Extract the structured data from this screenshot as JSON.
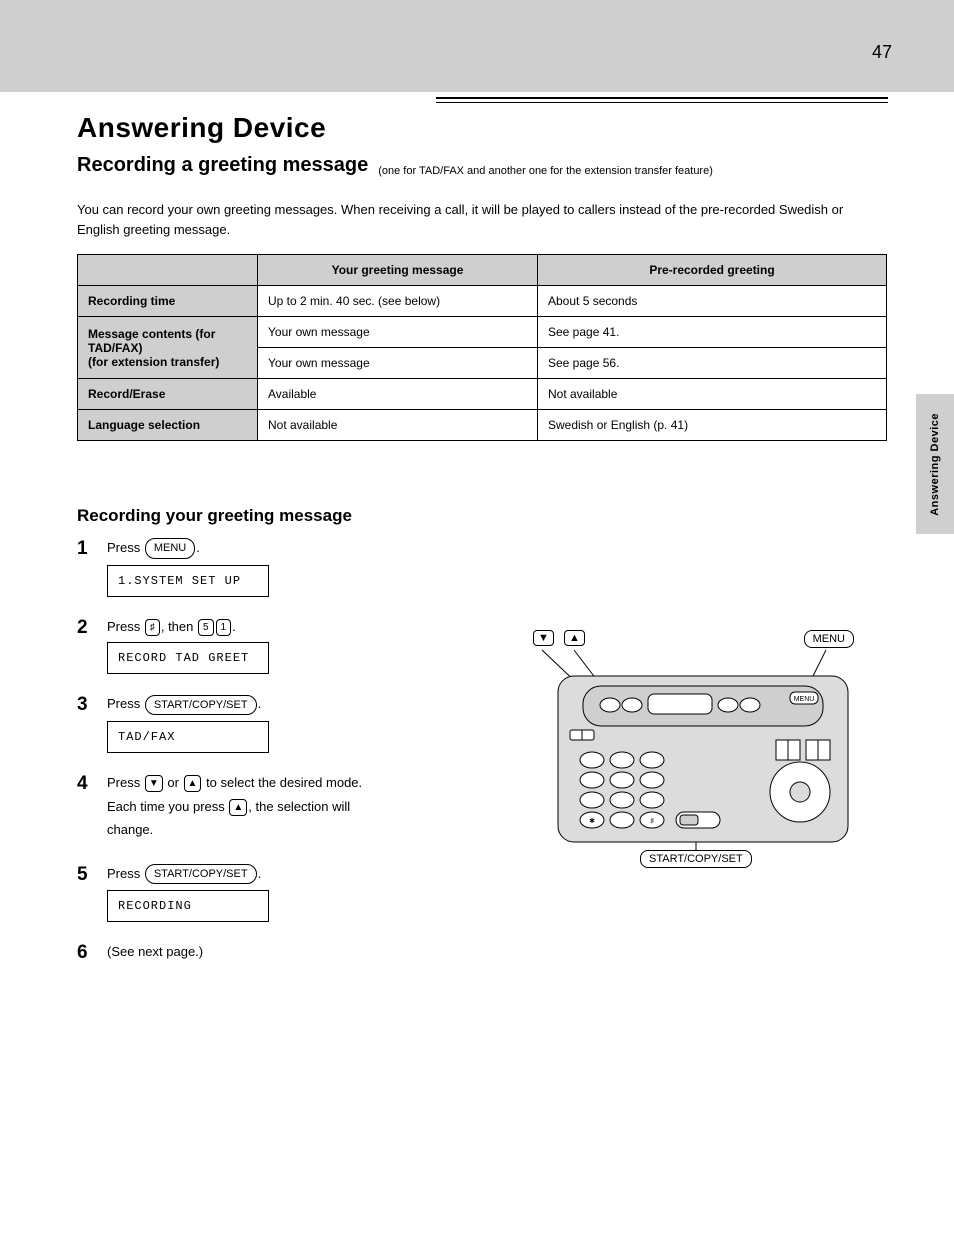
{
  "page_number": "47",
  "side_tab": "Answering Device",
  "title": "Answering Device",
  "subtitle": "Recording a greeting message",
  "subtitle_note": "(one for TAD/FAX and another one for the extension transfer feature)",
  "intro": "You can record your own greeting messages. When receiving a call, it will be played to callers instead of the pre-recorded Swedish or English greeting message.",
  "table": {
    "header": [
      "",
      "Your greeting message",
      "Pre-recorded greeting"
    ],
    "rows": [
      {
        "label": "Recording time",
        "c1": "Up to 2 min. 40 sec. (see below)",
        "c2": "About 5 seconds"
      },
      {
        "label": "Message contents (for TAD/FAX)",
        "c1": "Your own message",
        "c2": "See page 41."
      },
      {
        "label_cont": "(for extension transfer)",
        "c1b": "Your own message",
        "c2b": "See page 56."
      },
      {
        "label": "Record/Erase",
        "c1": "Available",
        "c2": "Not available"
      },
      {
        "label": "Language selection",
        "c1": "Not available",
        "c2": "Swedish or English (p. 41)"
      }
    ]
  },
  "section2_title": "Recording your greeting message",
  "steps": [
    {
      "num": "1",
      "lines": [
        {
          "segs": [
            {
              "t": "Press "
            },
            {
              "key": "MENU",
              "cls": "key"
            },
            {
              "t": "."
            }
          ]
        }
      ],
      "lcd": "1.SYSTEM SET UP"
    },
    {
      "num": "2",
      "lines": [
        {
          "segs": [
            {
              "t": "Press "
            },
            {
              "key": "♯",
              "cls": "key small"
            },
            {
              "t": ", then "
            },
            {
              "key": "5",
              "cls": "key small"
            },
            {
              "key": "1",
              "cls": "key small"
            },
            {
              "t": "."
            }
          ]
        }
      ],
      "lcd": "RECORD TAD GREET"
    },
    {
      "num": "3",
      "lines": [
        {
          "segs": [
            {
              "t": "Press "
            },
            {
              "key": "START/COPY/SET",
              "cls": "key"
            },
            {
              "t": "."
            }
          ]
        }
      ],
      "lcd": "TAD/FAX"
    },
    {
      "num": "4",
      "lines": [
        {
          "segs": [
            {
              "t": "Press "
            },
            {
              "key": "▼",
              "cls": "key tri"
            },
            {
              "t": " or "
            },
            {
              "key": "▲",
              "cls": "key tri"
            },
            {
              "t": " to select the desired mode."
            }
          ]
        },
        {
          "segs": [
            {
              "t": "Each time you press "
            },
            {
              "key": "▲",
              "cls": "key tri"
            },
            {
              "t": ", the selection will"
            }
          ]
        },
        {
          "segs": [
            {
              "t": "change."
            }
          ]
        }
      ]
    },
    {
      "num": "5",
      "lines": [
        {
          "segs": [
            {
              "t": "Press "
            },
            {
              "key": "START/COPY/SET",
              "cls": "key"
            },
            {
              "t": "."
            }
          ]
        }
      ],
      "lcd": "RECORDING"
    },
    {
      "num": "6",
      "lines": [
        {
          "segs": [
            {
              "t": "(See next page.)"
            }
          ]
        }
      ]
    }
  ],
  "figure": {
    "labels": {
      "down": "▼",
      "up": "▲",
      "menu": "MENU",
      "startset": "START/COPY/SET"
    }
  }
}
